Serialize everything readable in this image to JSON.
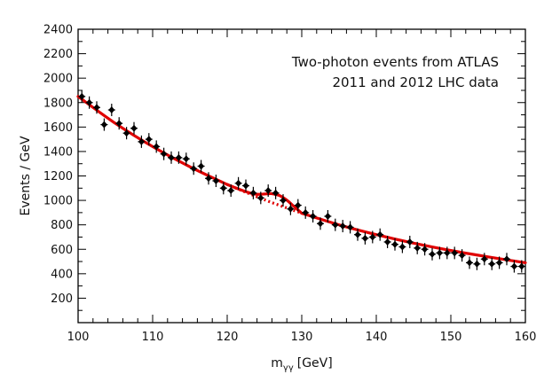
{
  "chart_data": {
    "type": "scatter",
    "title": "",
    "annotation": [
      "Two-photon events from ATLAS",
      "2011 and 2012 LHC data"
    ],
    "xlabel": {
      "base": "m",
      "sub": "γγ",
      "unit": "[GeV]"
    },
    "ylabel": "Events / GeV",
    "xlim": [
      100,
      160
    ],
    "ylim": [
      0,
      2400
    ],
    "xticks": [
      100,
      110,
      120,
      130,
      140,
      150,
      160
    ],
    "yticks": [
      200,
      400,
      600,
      800,
      1000,
      1200,
      1400,
      1600,
      1800,
      2000,
      2200,
      2400
    ],
    "grid": false,
    "legend": "none",
    "colors": {
      "fit": "#e00000",
      "data": "#000000"
    },
    "series": [
      {
        "kind": "data",
        "x": [
          100.5,
          101.5,
          102.5,
          103.5,
          104.5,
          105.5,
          106.5,
          107.5,
          108.5,
          109.5,
          110.5,
          111.5,
          112.5,
          113.5,
          114.5,
          115.5,
          116.5,
          117.5,
          118.5,
          119.5,
          120.5,
          121.5,
          122.5,
          123.5,
          124.5,
          125.5,
          126.5,
          127.5,
          128.5,
          129.5,
          130.5,
          131.5,
          132.5,
          133.5,
          134.5,
          135.5,
          136.5,
          137.5,
          138.5,
          139.5,
          140.5,
          141.5,
          142.5,
          143.5,
          144.5,
          145.5,
          146.5,
          147.5,
          148.5,
          149.5,
          150.5,
          151.5,
          152.5,
          153.5,
          154.5,
          155.5,
          156.5,
          157.5,
          158.5,
          159.5
        ],
        "y": [
          1850,
          1800,
          1760,
          1620,
          1740,
          1630,
          1550,
          1590,
          1480,
          1500,
          1440,
          1380,
          1350,
          1350,
          1340,
          1260,
          1280,
          1180,
          1160,
          1100,
          1080,
          1140,
          1120,
          1060,
          1020,
          1080,
          1060,
          1000,
          930,
          960,
          900,
          870,
          810,
          870,
          800,
          790,
          780,
          720,
          690,
          700,
          720,
          660,
          640,
          620,
          660,
          610,
          600,
          560,
          570,
          570,
          570,
          550,
          490,
          480,
          520,
          480,
          490,
          520,
          460,
          460
        ]
      },
      {
        "kind": "fit",
        "description": "background-only fit",
        "x": [
          100,
          105,
          110,
          115,
          120,
          125,
          130,
          135,
          140,
          145,
          150,
          155,
          160
        ],
        "y": [
          1850,
          1630,
          1440,
          1275,
          1130,
          1005,
          895,
          800,
          720,
          650,
          590,
          538,
          490
        ]
      },
      {
        "kind": "signal-fit",
        "x": [
          120,
          122,
          123,
          124,
          125,
          126,
          127,
          128,
          129,
          130
        ],
        "y": [
          1130,
          1082,
          1062,
          1050,
          1052,
          1055,
          1040,
          1002,
          948,
          895
        ]
      }
    ]
  }
}
